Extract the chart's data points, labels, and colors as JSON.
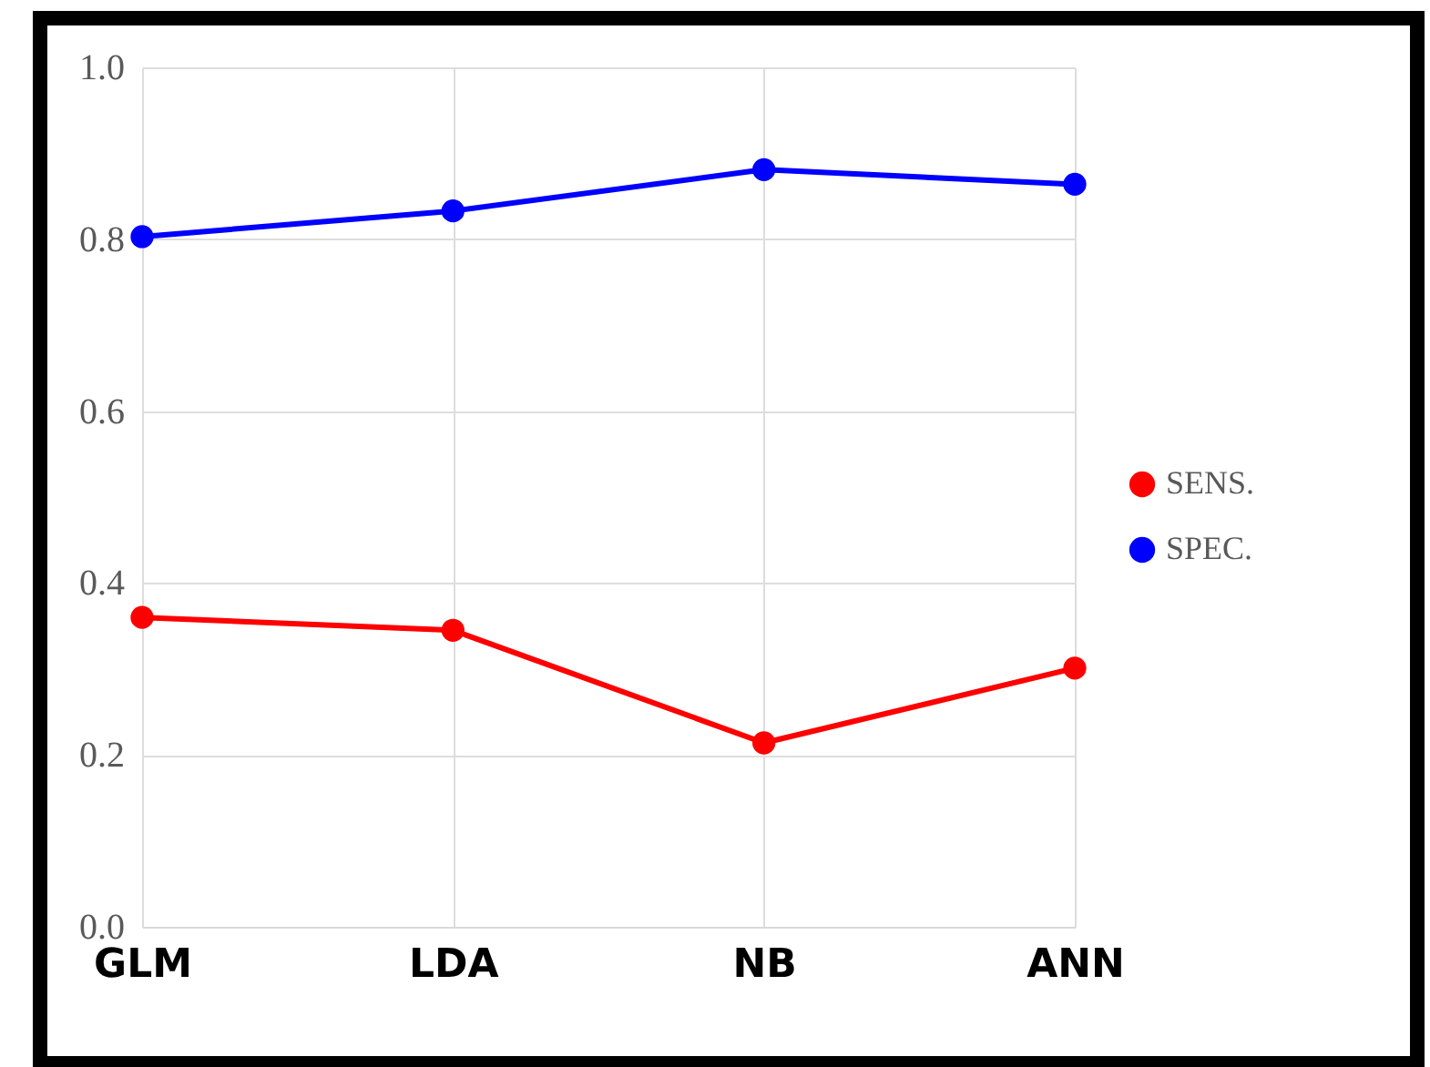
{
  "chart_data": {
    "type": "line",
    "categories": [
      "GLM",
      "LDA",
      "NB",
      "ANN"
    ],
    "series": [
      {
        "name": "SENS.",
        "color": "#ff0000",
        "values": [
          0.36,
          0.345,
          0.214,
          0.301
        ]
      },
      {
        "name": "SPEC.",
        "color": "#0000ff",
        "values": [
          0.803,
          0.833,
          0.881,
          0.864
        ]
      }
    ],
    "ylim": [
      0,
      1
    ],
    "yticks": [
      {
        "value": 0,
        "label": "0.0"
      },
      {
        "value": 0.2,
        "label": "0.2"
      },
      {
        "value": 0.4,
        "label": "0.4"
      },
      {
        "value": 0.6,
        "label": "0.6"
      },
      {
        "value": 0.8,
        "label": "0.8"
      },
      {
        "value": 1,
        "label": "1.0"
      }
    ],
    "grid": true,
    "legend": "right",
    "marker": "circle",
    "line_style": "solid"
  }
}
